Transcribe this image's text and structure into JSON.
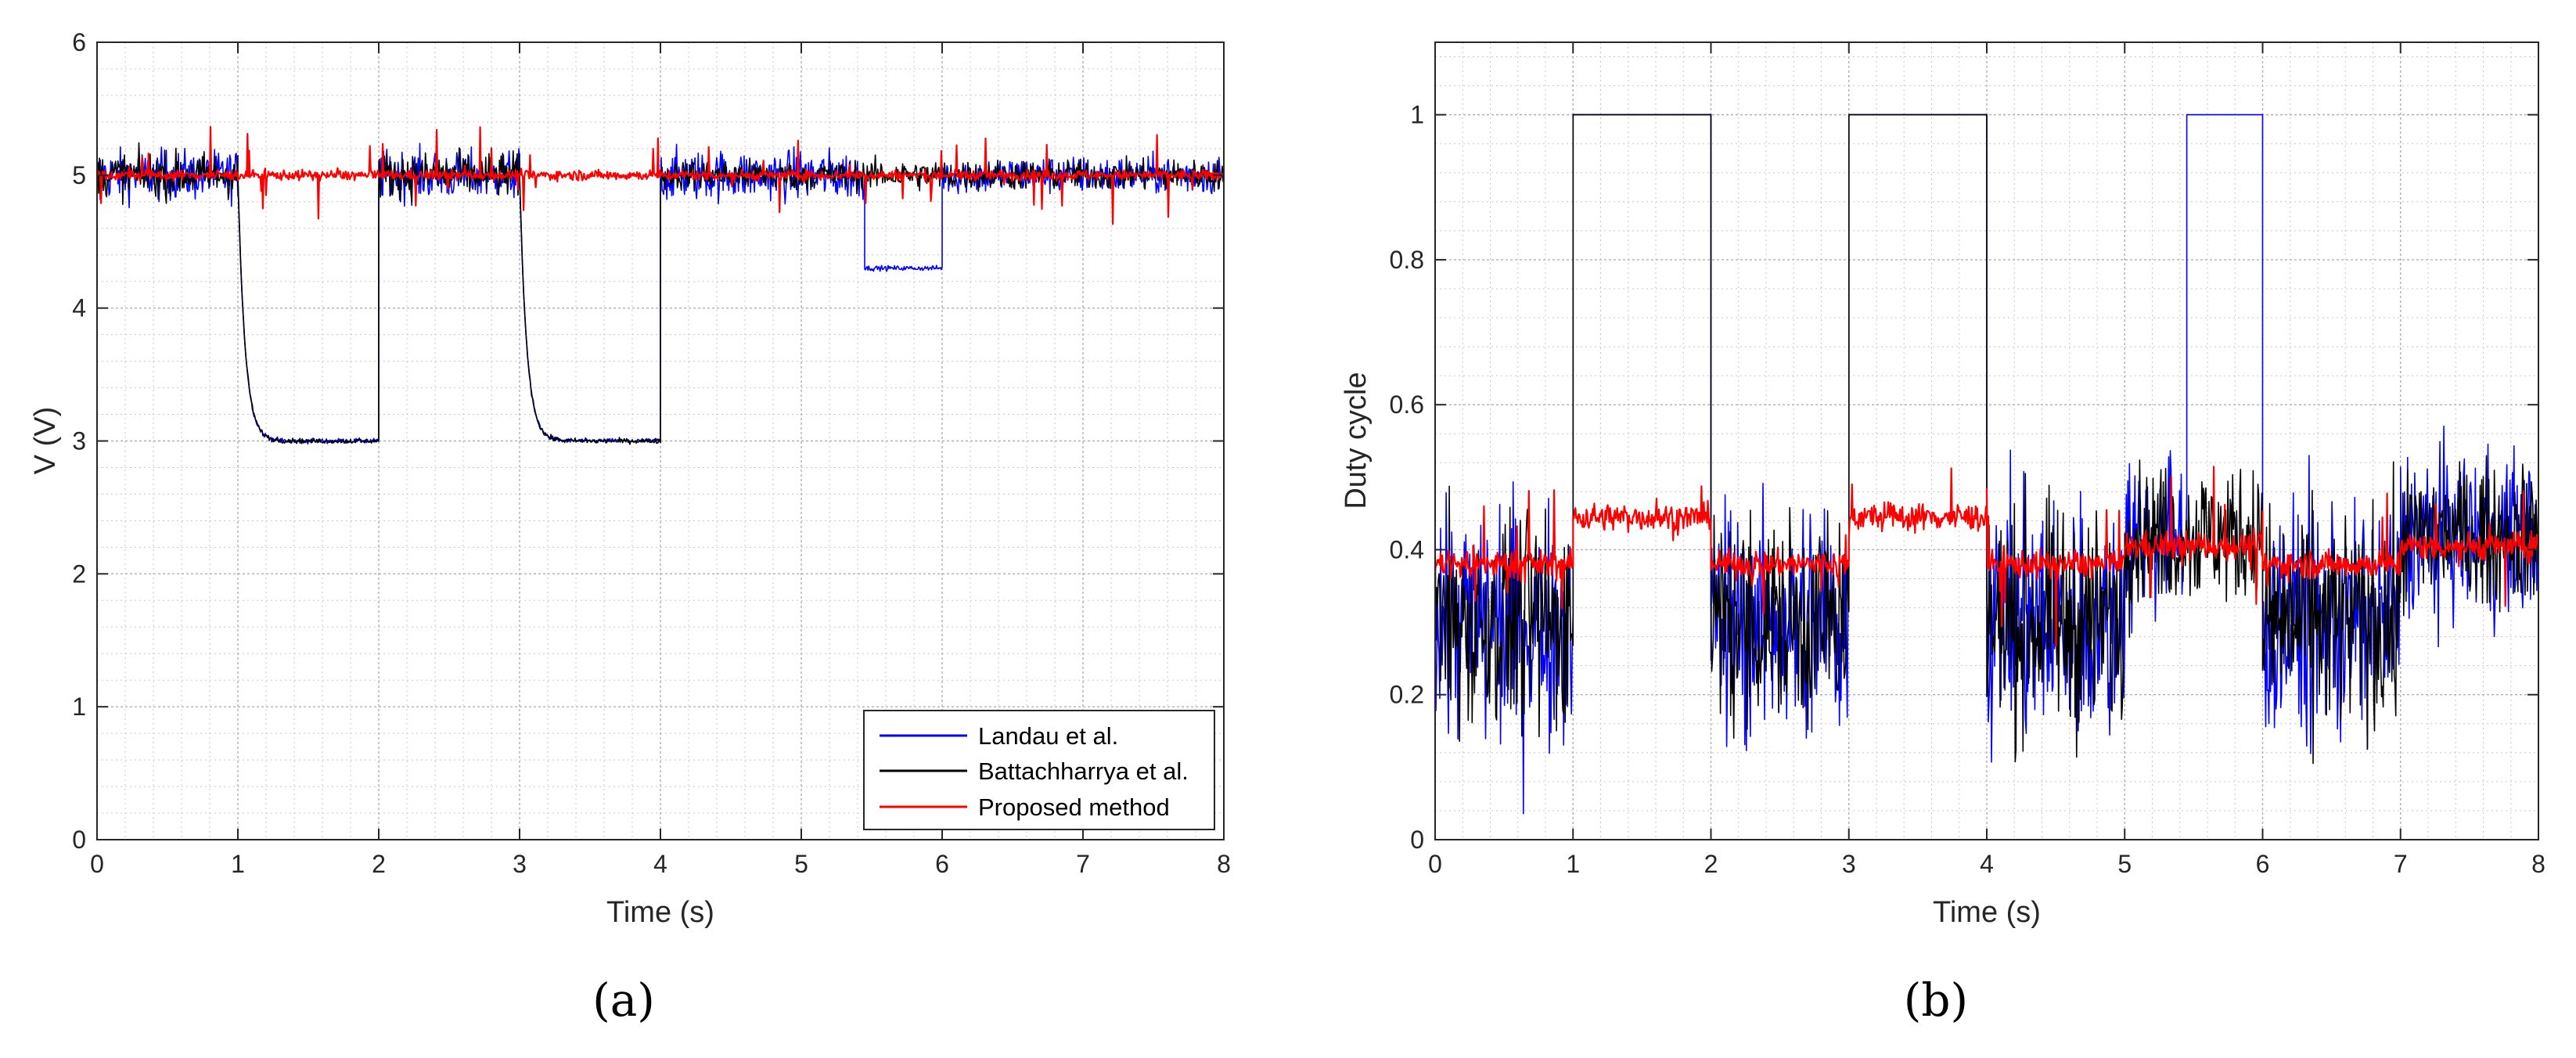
{
  "chart_data": [
    {
      "type": "line",
      "panel": "a",
      "caption": "(a)",
      "xlabel": "Time (s)",
      "ylabel": "V (V)",
      "xlim": [
        0,
        8
      ],
      "ylim": [
        0,
        6
      ],
      "xticks": [
        0,
        1,
        2,
        3,
        4,
        5,
        6,
        7,
        8
      ],
      "yticks": [
        0,
        1,
        2,
        3,
        4,
        5,
        6
      ],
      "grid": "on",
      "legend_position": "bottom-right",
      "series": [
        {
          "name": "Landau et al.",
          "color": "#0000ff",
          "segments": [
            {
              "t": [
                0,
                1.0
              ],
              "mean": 5.0,
              "noise": 0.2
            },
            {
              "t": [
                1.0,
                2.0
              ],
              "mean": 3.0,
              "noise": 0.02,
              "transient_from": 5.0
            },
            {
              "t": [
                2.0,
                3.0
              ],
              "mean": 5.0,
              "noise": 0.2
            },
            {
              "t": [
                3.0,
                4.0
              ],
              "mean": 3.0,
              "noise": 0.02,
              "transient_from": 5.0
            },
            {
              "t": [
                4.0,
                5.45
              ],
              "mean": 5.0,
              "noise": 0.2
            },
            {
              "t": [
                5.45,
                6.0
              ],
              "mean": 4.3,
              "noise": 0.02
            },
            {
              "t": [
                6.0,
                8.0
              ],
              "mean": 5.0,
              "noise": 0.15
            }
          ]
        },
        {
          "name": "Battachharrya et al.",
          "color": "#000000",
          "segments": [
            {
              "t": [
                0,
                1.0
              ],
              "mean": 5.0,
              "noise": 0.18
            },
            {
              "t": [
                1.0,
                2.0
              ],
              "mean": 3.0,
              "noise": 0.02,
              "transient_from": 5.0
            },
            {
              "t": [
                2.0,
                3.0
              ],
              "mean": 5.0,
              "noise": 0.18
            },
            {
              "t": [
                3.0,
                4.0
              ],
              "mean": 3.0,
              "noise": 0.02,
              "transient_from": 5.0
            },
            {
              "t": [
                4.0,
                8.0
              ],
              "mean": 5.0,
              "noise": 0.12
            }
          ]
        },
        {
          "name": "Proposed method",
          "color": "#ff0000",
          "segments": [
            {
              "t": [
                0,
                8.0
              ],
              "mean": 5.0,
              "noise": 0.04,
              "spikes": 0.35
            }
          ]
        }
      ]
    },
    {
      "type": "line",
      "panel": "b",
      "caption": "(b)",
      "xlabel": "Time (s)",
      "ylabel": "Duty cycle",
      "xlim": [
        0,
        8
      ],
      "ylim": [
        0,
        1.1
      ],
      "xticks": [
        0,
        1,
        2,
        3,
        4,
        5,
        6,
        7,
        8
      ],
      "yticks": [
        0,
        0.2,
        0.4,
        0.6,
        0.8,
        1
      ],
      "grid": "on",
      "series": [
        {
          "name": "Landau et al.",
          "color": "#0000ff",
          "segments": [
            {
              "t": [
                0,
                1.0
              ],
              "mean": 0.3,
              "noise": 0.18
            },
            {
              "t": [
                1.0,
                2.0
              ],
              "mean": 1.0,
              "noise": 0
            },
            {
              "t": [
                2.0,
                3.0
              ],
              "mean": 0.3,
              "noise": 0.18
            },
            {
              "t": [
                3.0,
                4.0
              ],
              "mean": 1.0,
              "noise": 0
            },
            {
              "t": [
                4.0,
                5.0
              ],
              "mean": 0.3,
              "noise": 0.18
            },
            {
              "t": [
                5.0,
                5.45
              ],
              "mean": 0.42,
              "noise": 0.12
            },
            {
              "t": [
                5.45,
                6.0
              ],
              "mean": 1.0,
              "noise": 0
            },
            {
              "t": [
                6.0,
                7.0
              ],
              "mean": 0.3,
              "noise": 0.18
            },
            {
              "t": [
                7.0,
                8.0
              ],
              "mean": 0.42,
              "noise": 0.12
            }
          ]
        },
        {
          "name": "Battachharrya et al.",
          "color": "#000000",
          "segments": [
            {
              "t": [
                0,
                1.0
              ],
              "mean": 0.3,
              "noise": 0.16
            },
            {
              "t": [
                1.0,
                2.0
              ],
              "mean": 1.0,
              "noise": 0
            },
            {
              "t": [
                2.0,
                3.0
              ],
              "mean": 0.3,
              "noise": 0.16
            },
            {
              "t": [
                3.0,
                4.0
              ],
              "mean": 1.0,
              "noise": 0
            },
            {
              "t": [
                4.0,
                5.0
              ],
              "mean": 0.3,
              "noise": 0.16
            },
            {
              "t": [
                5.0,
                6.0
              ],
              "mean": 0.42,
              "noise": 0.1
            },
            {
              "t": [
                6.0,
                7.0
              ],
              "mean": 0.3,
              "noise": 0.16
            },
            {
              "t": [
                7.0,
                8.0
              ],
              "mean": 0.42,
              "noise": 0.1
            }
          ]
        },
        {
          "name": "Proposed method",
          "color": "#ff0000",
          "segments": [
            {
              "t": [
                0,
                1.0
              ],
              "mean": 0.38,
              "noise": 0.02,
              "spikes": 0.12
            },
            {
              "t": [
                1.0,
                2.0
              ],
              "mean": 0.445,
              "noise": 0.02,
              "spikes": 0.06
            },
            {
              "t": [
                2.0,
                3.0
              ],
              "mean": 0.38,
              "noise": 0.02,
              "spikes": 0.12
            },
            {
              "t": [
                3.0,
                4.0
              ],
              "mean": 0.445,
              "noise": 0.02,
              "spikes": 0.06
            },
            {
              "t": [
                4.0,
                5.0
              ],
              "mean": 0.38,
              "noise": 0.02,
              "spikes": 0.12
            },
            {
              "t": [
                5.0,
                6.0
              ],
              "mean": 0.405,
              "noise": 0.02,
              "spikes": 0.1
            },
            {
              "t": [
                6.0,
                7.0
              ],
              "mean": 0.38,
              "noise": 0.02,
              "spikes": 0.12
            },
            {
              "t": [
                7.0,
                8.0
              ],
              "mean": 0.405,
              "noise": 0.02,
              "spikes": 0.1
            }
          ]
        }
      ]
    }
  ]
}
